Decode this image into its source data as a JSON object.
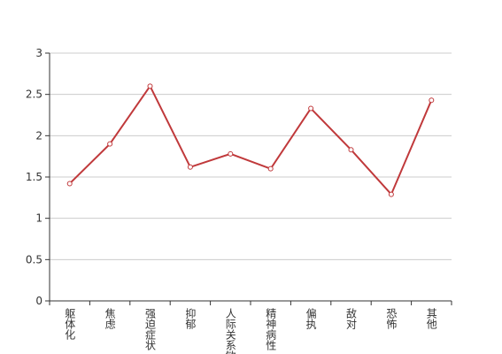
{
  "chart_data": {
    "type": "line",
    "categories": [
      "躯体化",
      "焦虑",
      "强迫症状",
      "抑郁",
      "人际关系敏感",
      "精神病性",
      "偏执",
      "敌对",
      "恐怖",
      "其他"
    ],
    "values": [
      1.42,
      1.9,
      2.6,
      1.62,
      1.78,
      1.6,
      2.33,
      1.83,
      1.29,
      2.43
    ],
    "color": "#c0393b",
    "ylim": [
      0,
      3
    ],
    "yticks": [
      0,
      0.5,
      1,
      1.5,
      2,
      2.5,
      3
    ],
    "grid": true
  }
}
